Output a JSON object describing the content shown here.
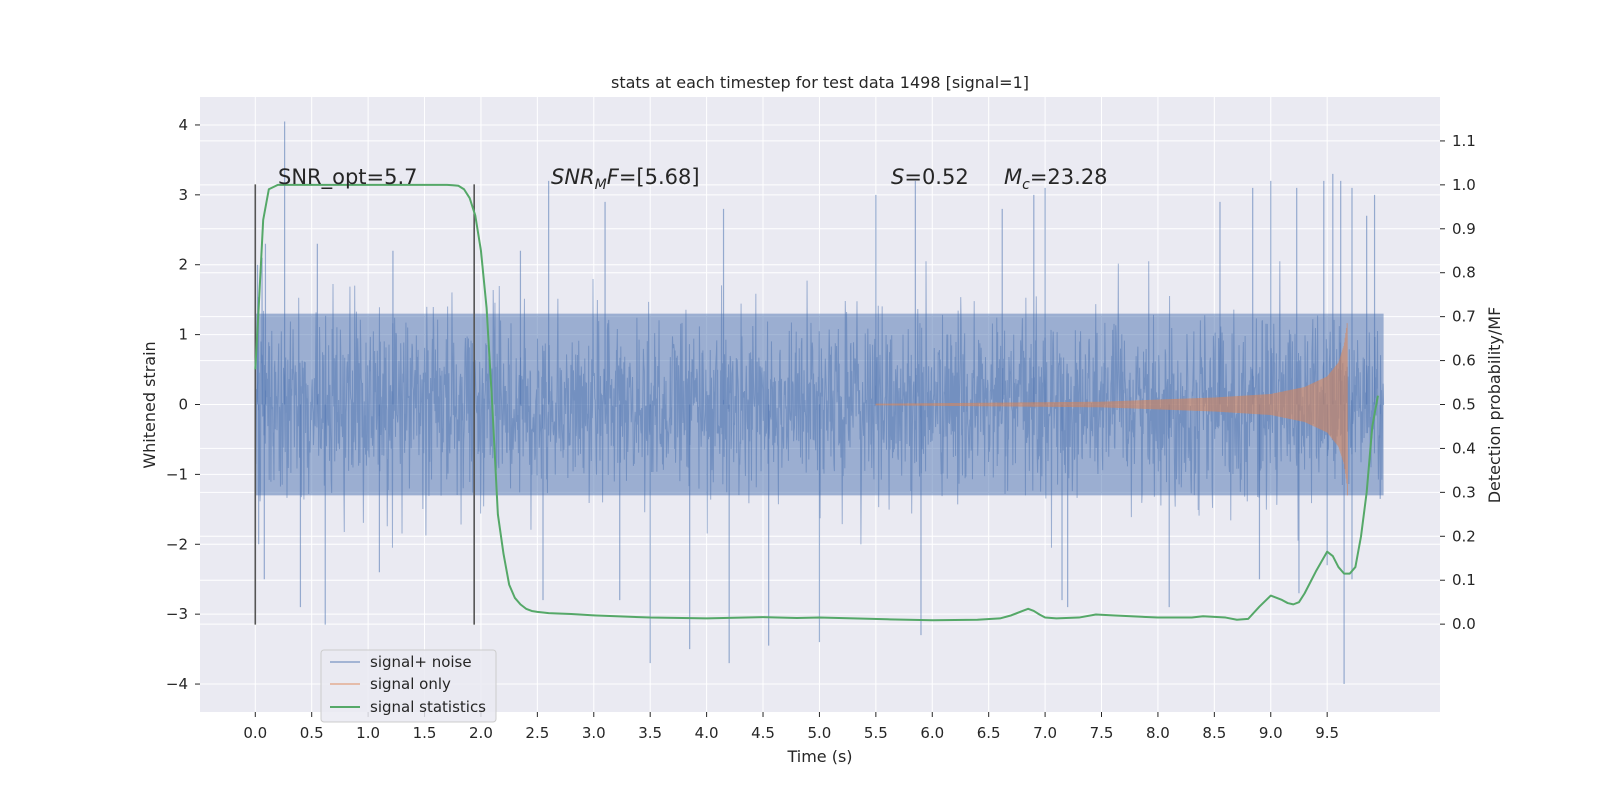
{
  "chart_data": {
    "type": "line",
    "title": "stats at each timestep for test data 1498 [signal=1]",
    "xlabel": "Time (s)",
    "ylabel": "Whitened strain",
    "y2label": "Detection probability/MF",
    "xlim": [
      -0.49,
      10.5
    ],
    "ylim": [
      -4.4,
      4.4
    ],
    "y2lim": [
      -0.2,
      1.2
    ],
    "xticks": [
      0.0,
      0.5,
      1.0,
      1.5,
      2.0,
      2.5,
      3.0,
      3.5,
      4.0,
      4.5,
      5.0,
      5.5,
      6.0,
      6.5,
      7.0,
      7.5,
      8.0,
      8.5,
      9.0,
      9.5
    ],
    "xtick_labels": [
      "0.0",
      "0.5",
      "1.0",
      "1.5",
      "2.0",
      "2.5",
      "3.0",
      "3.5",
      "4.0",
      "4.5",
      "5.0",
      "5.5",
      "6.0",
      "6.5",
      "7.0",
      "7.5",
      "8.0",
      "8.5",
      "9.0",
      "9.5"
    ],
    "yticks": [
      -4,
      -3,
      -2,
      -1,
      0,
      1,
      2,
      3,
      4
    ],
    "ytick_labels": [
      "−4",
      "−3",
      "−2",
      "−1",
      "0",
      "1",
      "2",
      "3",
      "4"
    ],
    "y2ticks": [
      0.0,
      0.1,
      0.2,
      0.3,
      0.4,
      0.5,
      0.6,
      0.7,
      0.8,
      0.9,
      1.0,
      1.1
    ],
    "y2tick_labels": [
      "0.0",
      "0.1",
      "0.2",
      "0.3",
      "0.4",
      "0.5",
      "0.6",
      "0.7",
      "0.8",
      "0.9",
      "1.0",
      "1.1"
    ],
    "grid": true,
    "legend_position": "lower-left",
    "annotations": {
      "snr_opt": "SNR_opt=5.7",
      "snr_mf_a": "SNR",
      "snr_mf_sub": "M",
      "snr_mf_b": "F",
      "snr_mf_c": "=[5.68]",
      "s_a": "S",
      "s_b": "=0.52",
      "mc_a": "M",
      "mc_sub": "c",
      "mc_b": "=23.28"
    },
    "vlines": {
      "x": [
        0.0,
        1.94
      ],
      "y_range": [
        -3.15,
        3.15
      ],
      "color": "#555555"
    },
    "series": [
      {
        "name": "signal+ noise",
        "color": "#4c72b0",
        "axis": "left",
        "t_range": [
          0.0,
          10.0
        ],
        "core_amplitude": 1.3,
        "spike_peaks": [
          [
            0.02,
            2.0
          ],
          [
            0.06,
            2.1
          ],
          [
            0.09,
            2.3
          ],
          [
            0.26,
            4.05
          ],
          [
            0.55,
            2.3
          ],
          [
            1.22,
            2.2
          ],
          [
            2.35,
            2.2
          ],
          [
            2.6,
            3.2
          ],
          [
            3.1,
            2.9
          ],
          [
            4.15,
            2.8
          ],
          [
            5.5,
            3.0
          ],
          [
            5.85,
            3.2
          ],
          [
            6.62,
            2.8
          ],
          [
            6.9,
            3.0
          ],
          [
            7.0,
            3.1
          ],
          [
            8.55,
            2.9
          ],
          [
            8.84,
            3.1
          ],
          [
            9.0,
            3.2
          ],
          [
            9.23,
            3.1
          ],
          [
            9.47,
            3.2
          ],
          [
            9.55,
            3.3
          ],
          [
            9.62,
            3.2
          ],
          [
            9.72,
            3.1
          ],
          [
            9.85,
            2.7
          ],
          [
            9.92,
            3.0
          ],
          [
            0.03,
            -2.0
          ],
          [
            0.08,
            -2.5
          ],
          [
            0.4,
            -2.9
          ],
          [
            0.62,
            -3.15
          ],
          [
            1.1,
            -2.4
          ],
          [
            2.55,
            -2.8
          ],
          [
            3.23,
            -2.8
          ],
          [
            3.5,
            -3.7
          ],
          [
            3.85,
            -3.5
          ],
          [
            4.2,
            -3.7
          ],
          [
            4.55,
            -3.45
          ],
          [
            5.0,
            -3.4
          ],
          [
            5.9,
            -3.3
          ],
          [
            7.15,
            -2.8
          ],
          [
            7.2,
            -2.9
          ],
          [
            8.1,
            -2.9
          ],
          [
            8.9,
            -2.5
          ],
          [
            9.25,
            -2.7
          ],
          [
            9.5,
            -2.3
          ],
          [
            9.65,
            -4.0
          ],
          [
            9.72,
            -2.5
          ],
          [
            9.97,
            -1.35
          ]
        ]
      },
      {
        "name": "signal only",
        "color": "#dd8452",
        "axis": "left",
        "t_range": [
          5.5,
          9.68
        ],
        "amplitude_points": [
          [
            5.5,
            0.01
          ],
          [
            7.5,
            0.04
          ],
          [
            8.5,
            0.1
          ],
          [
            9.0,
            0.15
          ],
          [
            9.3,
            0.25
          ],
          [
            9.5,
            0.4
          ],
          [
            9.6,
            0.6
          ],
          [
            9.65,
            0.85
          ],
          [
            9.68,
            1.2
          ]
        ]
      },
      {
        "name": "signal statistics",
        "color": "#55a868",
        "axis": "right",
        "x": [
          0.0,
          0.03,
          0.07,
          0.12,
          0.2,
          0.3,
          0.5,
          0.8,
          1.0,
          1.3,
          1.5,
          1.6,
          1.7,
          1.75,
          1.8,
          1.85,
          1.9,
          1.95,
          2.0,
          2.05,
          2.1,
          2.15,
          2.2,
          2.25,
          2.3,
          2.35,
          2.4,
          2.45,
          2.5,
          2.6,
          2.8,
          3.0,
          3.5,
          4.0,
          4.5,
          4.8,
          5.0,
          5.3,
          5.6,
          6.0,
          6.4,
          6.6,
          6.7,
          6.8,
          6.85,
          6.9,
          6.95,
          7.0,
          7.1,
          7.3,
          7.45,
          7.6,
          8.0,
          8.3,
          8.4,
          8.6,
          8.7,
          8.8,
          8.9,
          9.0,
          9.1,
          9.15,
          9.2,
          9.25,
          9.3,
          9.4,
          9.5,
          9.55,
          9.6,
          9.65,
          9.7,
          9.75,
          9.8,
          9.85,
          9.9,
          9.95
        ],
        "y": [
          0.58,
          0.72,
          0.92,
          0.99,
          1.0,
          1.0,
          1.0,
          1.0,
          1.0,
          1.0,
          1.0,
          1.0,
          1.0,
          0.999,
          0.998,
          0.99,
          0.97,
          0.93,
          0.85,
          0.72,
          0.5,
          0.25,
          0.16,
          0.09,
          0.06,
          0.045,
          0.035,
          0.03,
          0.028,
          0.025,
          0.023,
          0.02,
          0.015,
          0.013,
          0.016,
          0.014,
          0.015,
          0.013,
          0.011,
          0.009,
          0.01,
          0.013,
          0.02,
          0.03,
          0.035,
          0.03,
          0.022,
          0.015,
          0.013,
          0.015,
          0.022,
          0.02,
          0.015,
          0.015,
          0.018,
          0.015,
          0.01,
          0.012,
          0.04,
          0.065,
          0.055,
          0.048,
          0.045,
          0.05,
          0.07,
          0.12,
          0.165,
          0.155,
          0.13,
          0.115,
          0.115,
          0.13,
          0.2,
          0.3,
          0.45,
          0.52
        ]
      }
    ]
  }
}
